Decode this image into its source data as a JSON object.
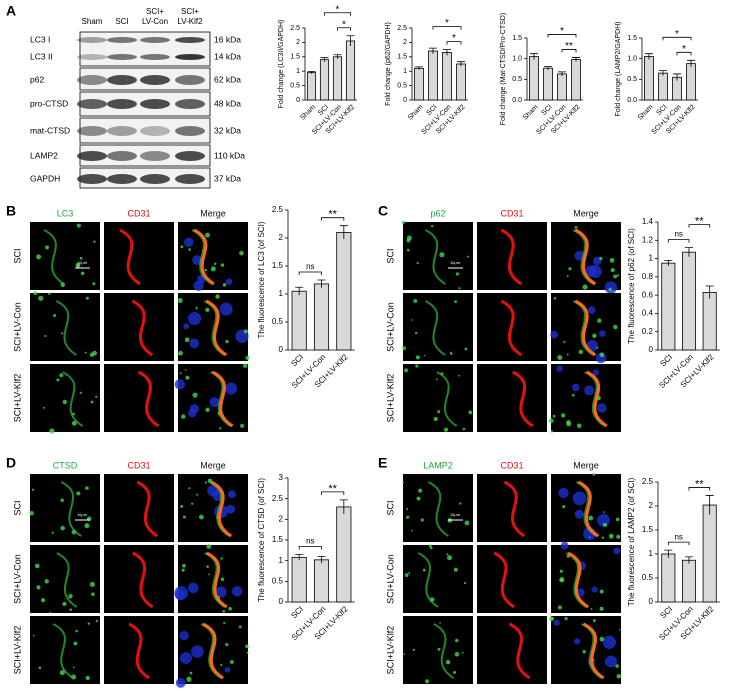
{
  "panel_labels": [
    "A",
    "B",
    "C",
    "D",
    "E"
  ],
  "blot": {
    "columns": [
      [
        "Sham"
      ],
      [
        "SCI"
      ],
      [
        "SCI+",
        "LV-Con"
      ],
      [
        "SCI+",
        "LV-Klf2"
      ]
    ],
    "rows": [
      {
        "name": "LC3 I",
        "size": "16 kDa"
      },
      {
        "name": "LC3 II",
        "size": "14 kDa"
      },
      {
        "name": "p62",
        "size": "62 kDa"
      },
      {
        "name": "pro-CTSD",
        "size": "48 kDa"
      },
      {
        "name": "mat-CTSD",
        "size": "32 kDa"
      },
      {
        "name": "LAMP2",
        "size": "110 kDa"
      },
      {
        "name": "GAPDH",
        "size": "37 kDa"
      }
    ]
  },
  "micrographs": [
    {
      "columns": [
        "LC3",
        "CD31",
        "Merge"
      ],
      "rows": [
        "SCI",
        "SCI+LV-Con",
        "SCI+LV-Klf2"
      ],
      "scale_bar": "10μm"
    },
    {
      "columns": [
        "p62",
        "CD31",
        "Merge"
      ],
      "rows": [
        "SCI",
        "SCI+LV-Con",
        "SCI+LV-Klf2"
      ],
      "scale_bar": "10μm"
    },
    {
      "columns": [
        "CTSD",
        "CD31",
        "Merge"
      ],
      "rows": [
        "SCI",
        "SCI+LV-Con",
        "SCI+LV-Klf2"
      ],
      "scale_bar": "10μm"
    },
    {
      "columns": [
        "LAMP2",
        "CD31",
        "Merge"
      ],
      "rows": [
        "SCI",
        "SCI+LV-Con",
        "SCI+LV-Klf2"
      ],
      "scale_bar": "10μm"
    }
  ],
  "chart_data": [
    {
      "type": "bar",
      "ylabel": "Fold change (LC3II/GAPDH)",
      "categories": [
        "Sham",
        "SCI",
        "SCI+LV-Con",
        "SCI+LV-Klf2"
      ],
      "values": [
        0.95,
        1.4,
        1.5,
        2.05
      ],
      "errors": [
        0.04,
        0.07,
        0.07,
        0.18
      ],
      "color": "#d9d9d9",
      "ylim": [
        0,
        2.5
      ],
      "yticks": [
        0,
        {
          "value": 0.5,
          "label": "0.5"
        },
        1,
        {
          "value": 1.5,
          "label": "1.5"
        },
        2,
        {
          "value": 2.5,
          "label": "2.5"
        }
      ],
      "significance": [
        {
          "label": "*",
          "between": [
            "SCI+LV-Con",
            "SCI+LV-Klf2"
          ]
        },
        {
          "label": "*",
          "between": [
            "SCI",
            "SCI+LV-Klf2"
          ]
        }
      ]
    },
    {
      "type": "bar",
      "ylabel": "Fold change (p62/GAPDH)",
      "categories": [
        "Sham",
        "SCI",
        "SCI+LV-Con",
        "SCI+LV-Klf2"
      ],
      "values": [
        1.1,
        1.7,
        1.65,
        1.25
      ],
      "errors": [
        0.05,
        0.1,
        0.1,
        0.08
      ],
      "color": "#d9d9d9",
      "ylim": [
        0,
        2.5
      ],
      "yticks": [
        0,
        {
          "value": 0.5,
          "label": "0.5"
        },
        1,
        {
          "value": 1.5,
          "label": "1.5"
        },
        2,
        {
          "value": 2.5,
          "label": "2.5"
        }
      ],
      "significance": [
        {
          "label": "*",
          "between": [
            "SCI+LV-Con",
            "SCI+LV-Klf2"
          ]
        },
        {
          "label": "*",
          "between": [
            "SCI",
            "SCI+LV-Klf2"
          ]
        }
      ]
    },
    {
      "type": "bar",
      "ylabel": "Fold change (Mat-CTSD/Pro-CTSD)",
      "categories": [
        "Sham",
        "SCI",
        "SCI+LV-Con",
        "SCI+LV-Klf2"
      ],
      "values": [
        1.05,
        0.77,
        0.63,
        0.98
      ],
      "errors": [
        0.07,
        0.04,
        0.05,
        0.05
      ],
      "color": "#d9d9d9",
      "ylim": [
        0,
        1.5
      ],
      "yticks": [
        {
          "value": 0,
          "label": "0.0"
        },
        {
          "value": 0.5,
          "label": "0.5"
        },
        {
          "value": 1,
          "label": "1.0"
        },
        {
          "value": 1.5,
          "label": "1.5"
        }
      ],
      "significance": [
        {
          "label": "**",
          "between": [
            "SCI+LV-Con",
            "SCI+LV-Klf2"
          ]
        },
        {
          "label": "*",
          "between": [
            "SCI",
            "SCI+LV-Klf2"
          ]
        }
      ]
    },
    {
      "type": "bar",
      "ylabel": "Fold change (LAMP2/GAPDH)",
      "categories": [
        "Sham",
        "SCI",
        "SCI+LV-Con",
        "SCI+LV-Klf2"
      ],
      "values": [
        1.05,
        0.65,
        0.55,
        0.88
      ],
      "errors": [
        0.07,
        0.06,
        0.08,
        0.08
      ],
      "color": "#d9d9d9",
      "ylim": [
        0,
        1.5
      ],
      "yticks": [
        {
          "value": 0,
          "label": "0.0"
        },
        {
          "value": 0.5,
          "label": "0.5"
        },
        {
          "value": 1,
          "label": "1.0"
        },
        {
          "value": 1.5,
          "label": "1.5"
        }
      ],
      "significance": [
        {
          "label": "*",
          "between": [
            "SCI+LV-Con",
            "SCI+LV-Klf2"
          ]
        },
        {
          "label": "*",
          "between": [
            "SCI",
            "SCI+LV-Klf2"
          ]
        }
      ]
    },
    {
      "type": "bar",
      "ylabel": "The fluorescence of LC3 (of SCI)",
      "categories": [
        "SCI",
        "SCI+LV-Con",
        "SCI+LV-Klf2"
      ],
      "values": [
        1.05,
        1.18,
        2.1
      ],
      "errors": [
        0.07,
        0.07,
        0.12
      ],
      "color": "#d9d9d9",
      "ylim": [
        0,
        2.5
      ],
      "yticks": [
        0,
        0.5,
        1,
        1.5,
        2,
        2.5
      ],
      "significance": [
        {
          "label": "ns",
          "between": [
            "SCI",
            "SCI+LV-Con"
          ]
        },
        {
          "label": "**",
          "between": [
            "SCI+LV-Con",
            "SCI+LV-Klf2"
          ]
        }
      ]
    },
    {
      "type": "bar",
      "ylabel": "The fluorescence of p62 (of SCI)",
      "categories": [
        "SCI",
        "SCI+LV-Con",
        "SCI+LV-Klf2"
      ],
      "values": [
        0.95,
        1.07,
        0.63
      ],
      "errors": [
        0.03,
        0.05,
        0.07
      ],
      "color": "#d9d9d9",
      "ylim": [
        0,
        1.4
      ],
      "yticks": [
        0,
        0.2,
        0.4,
        0.6,
        0.8,
        1,
        1.2,
        1.4
      ],
      "significance": [
        {
          "label": "ns",
          "between": [
            "SCI",
            "SCI+LV-Con"
          ]
        },
        {
          "label": "**",
          "between": [
            "SCI+LV-Con",
            "SCI+LV-Klf2"
          ]
        }
      ]
    },
    {
      "type": "bar",
      "ylabel": "The fluorescence of CTSD (of SCI)",
      "categories": [
        "SCI",
        "SCI+LV-Con",
        "SCI+LV-Klf2"
      ],
      "values": [
        1.08,
        1.02,
        2.3
      ],
      "errors": [
        0.07,
        0.08,
        0.17
      ],
      "color": "#d9d9d9",
      "ylim": [
        0,
        3
      ],
      "yticks": [
        0,
        0.5,
        1,
        1.5,
        2,
        2.5,
        3
      ],
      "significance": [
        {
          "label": "ns",
          "between": [
            "SCI",
            "SCI+LV-Con"
          ]
        },
        {
          "label": "**",
          "between": [
            "SCI+LV-Con",
            "SCI+LV-Klf2"
          ]
        }
      ]
    },
    {
      "type": "bar",
      "ylabel": "The fluorescence of LAMP2 (of SCI)",
      "categories": [
        "SCI",
        "SCI+LV-Con",
        "SCI+LV-Klf2"
      ],
      "values": [
        1.0,
        0.87,
        2.02
      ],
      "errors": [
        0.08,
        0.07,
        0.2
      ],
      "color": "#d9d9d9",
      "ylim": [
        0,
        2.5
      ],
      "yticks": [
        0,
        0.5,
        1,
        1.5,
        2,
        2.5
      ],
      "significance": [
        {
          "label": "ns",
          "between": [
            "SCI",
            "SCI+LV-Con"
          ]
        },
        {
          "label": "**",
          "between": [
            "SCI+LV-Con",
            "SCI+LV-Klf2"
          ]
        }
      ]
    }
  ]
}
